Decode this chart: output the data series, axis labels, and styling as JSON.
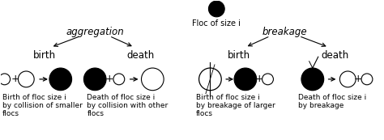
{
  "bg_color": "#ffffff",
  "text_color": "#000000",
  "title_top": "Floc of size i",
  "aggregation_label": "aggregation",
  "breakage_label": "breakage",
  "birth_label": "birth",
  "death_label": "death",
  "caption_agg_birth": "Birth of floc size i\nby collision of smaller\nflocs",
  "caption_agg_death": "Death of floc size i\nby collision with other\nflocs",
  "caption_break_birth": "Birth of floc size i\nby breakage of larger\nflocs",
  "caption_break_death": "Death of floc size i\nby breakage",
  "font_size_label": 8.5,
  "font_size_caption": 6.5,
  "font_size_title": 7.0
}
